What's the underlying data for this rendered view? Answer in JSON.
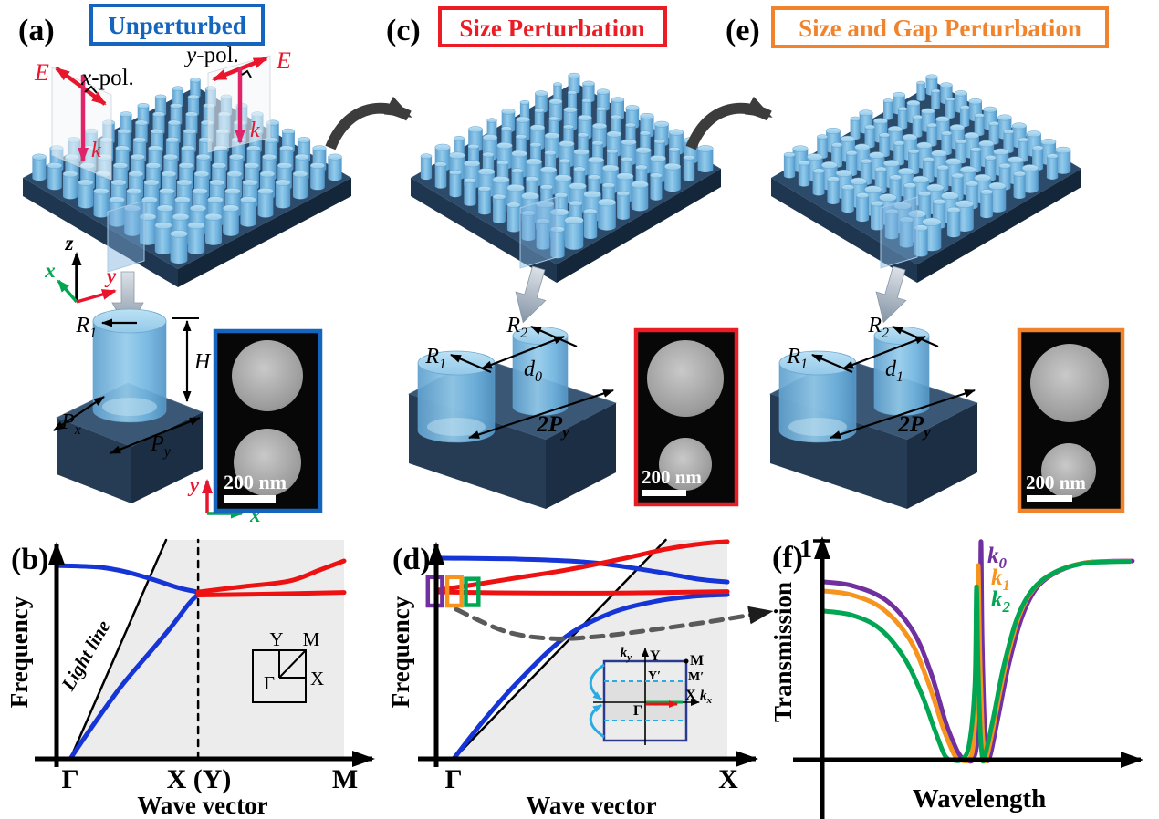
{
  "colors": {
    "blue_title": "#1565BE",
    "red_title": "#EC1C24",
    "orange_title": "#F0832C",
    "band_blue": "#1535D6",
    "band_red": "#EE1111",
    "k0_purple": "#7030A0",
    "k1_orange": "#F7941D",
    "k2_green": "#00A651",
    "axis_x_green": "#00A651",
    "axis_y_red": "#EE1111",
    "k_arrow_magenta": "#E0246A",
    "plot_shade": "#ECECEC",
    "cyan_fold": "#29ABE2"
  },
  "panel_a": {
    "tag": "(a)",
    "title": "Unperturbed",
    "pol_left_E": "E",
    "pol_left_k": "k",
    "pol_left_x": "x",
    "pol_left_rest": "-pol.",
    "pol_right_E": "E",
    "pol_right_k": "k",
    "pol_right_y": "y",
    "pol_right_rest": "-pol.",
    "axis_x": "x",
    "axis_y": "y",
    "axis_z": "z",
    "sem_axis_x": "x",
    "sem_axis_y": "y",
    "dim_R": "R",
    "dim_R_sub": "1",
    "dim_H": "H",
    "dim_P1": "P",
    "dim_P1_sub": "x",
    "dim_P2": "P",
    "dim_P2_sub": "y",
    "sem_scale": "200 nm"
  },
  "panel_c": {
    "tag": "(c)",
    "title": "Size Perturbation",
    "dim_R1": "R",
    "dim_R1_sub": "1",
    "dim_R2": "R",
    "dim_R2_sub": "2",
    "dim_d": "d",
    "dim_d_sub": "0",
    "dim_2P": "2P",
    "dim_2P_sub": "y",
    "sem_scale": "200 nm"
  },
  "panel_e": {
    "tag": "(e)",
    "title": "Size and Gap Perturbation",
    "dim_R1": "R",
    "dim_R1_sub": "1",
    "dim_R2": "R",
    "dim_R2_sub": "2",
    "dim_d": "d",
    "dim_d_sub": "1",
    "dim_2P": "2P",
    "dim_2P_sub": "y",
    "sem_scale": "200 nm"
  },
  "panel_b": {
    "tag": "(b)",
    "ylabel": "Frequency",
    "xlabel": "Wave vector",
    "light_line": "Light line",
    "tick_gamma": "Γ",
    "tick_x": "X (Y)",
    "tick_m": "M",
    "inset_Y": "Y",
    "inset_M": "M",
    "inset_G": "Γ",
    "inset_X": "X"
  },
  "panel_d": {
    "tag": "(d)",
    "ylabel": "Frequency",
    "xlabel": "Wave vector",
    "tick_gamma": "Γ",
    "tick_x": "X",
    "inset_ky": "k",
    "inset_ky_sub": "y",
    "inset_kx": "k",
    "inset_kx_sub": "x",
    "inset_Y": "Y",
    "inset_M": "M",
    "inset_Yp": "Y′",
    "inset_Mp": "M′",
    "inset_X": "X",
    "inset_G": "Γ"
  },
  "panel_f": {
    "tag": "(f)",
    "ylabel": "Transmission",
    "xlabel": "Wavelength",
    "tick_one": "1",
    "leg0": "k",
    "leg0_sub": "0",
    "leg1": "k",
    "leg1_sub": "1",
    "leg2": "k",
    "leg2_sub": "2"
  },
  "scenes": [
    {
      "panel": "a",
      "mode": "uniform",
      "rows": 10,
      "cols": 10
    },
    {
      "panel": "c",
      "mode": "size",
      "rows": 10,
      "cols": 10
    },
    {
      "panel": "e",
      "mode": "size_gap",
      "rows": 10,
      "cols": 10
    }
  ],
  "chart_data": [
    {
      "panel": "b",
      "type": "line",
      "xlabel": "Wave vector",
      "ylabel": "Frequency",
      "x_ticks": [
        "Γ",
        "X (Y)",
        "M"
      ],
      "y_ticks": [],
      "regions": [
        {
          "name": "light-cone-shading",
          "fill": "#ECECEC",
          "points": [
            [
              0,
              0
            ],
            [
              0.35,
              1
            ],
            [
              1,
              1
            ],
            [
              1,
              0
            ]
          ]
        }
      ],
      "series": [
        {
          "name": "light-line",
          "color": "#000000",
          "width": 2.5,
          "points": [
            [
              0,
              0
            ],
            [
              0.35,
              1
            ]
          ]
        },
        {
          "name": "BZ-boundary-X",
          "color": "#000000",
          "width": 2.5,
          "dash": "7,7",
          "points": [
            [
              0.467,
              0
            ],
            [
              0.467,
              1
            ]
          ]
        },
        {
          "name": "blue-band-upper",
          "color": "#1535D6",
          "width": 5,
          "points": [
            [
              -0.05,
              0.883
            ],
            [
              0.1,
              0.876
            ],
            [
              0.2,
              0.855
            ],
            [
              0.3,
              0.82
            ],
            [
              0.4,
              0.78
            ],
            [
              0.467,
              0.762
            ]
          ]
        },
        {
          "name": "blue-band-lower",
          "color": "#1535D6",
          "width": 5,
          "points": [
            [
              0,
              0
            ],
            [
              0.077,
              0.142
            ],
            [
              0.187,
              0.333
            ],
            [
              0.3,
              0.5
            ],
            [
              0.367,
              0.6
            ],
            [
              0.433,
              0.708
            ],
            [
              0.467,
              0.752
            ]
          ]
        },
        {
          "name": "red-band-upper",
          "color": "#EE1111",
          "width": 5,
          "points": [
            [
              0.467,
              0.762
            ],
            [
              0.633,
              0.787
            ],
            [
              0.8,
              0.812
            ],
            [
              0.91,
              0.862
            ],
            [
              1.0,
              0.904
            ]
          ]
        },
        {
          "name": "red-band-lower",
          "color": "#EE1111",
          "width": 5,
          "points": [
            [
              0.467,
              0.748
            ],
            [
              0.7,
              0.752
            ],
            [
              1.0,
              0.76
            ]
          ]
        }
      ]
    },
    {
      "panel": "d",
      "type": "line",
      "xlabel": "Wave vector",
      "ylabel": "Frequency",
      "x_ticks": [
        "Γ",
        "X"
      ],
      "y_ticks": [],
      "regions": [
        {
          "name": "light-cone-shading",
          "fill": "#ECECEC",
          "points": [
            [
              0,
              0
            ],
            [
              0.775,
              1
            ],
            [
              1,
              1
            ],
            [
              1,
              0
            ]
          ]
        }
      ],
      "series": [
        {
          "name": "light-line",
          "color": "#000000",
          "width": 2.5,
          "points": [
            [
              0,
              0
            ],
            [
              0.775,
              1
            ]
          ]
        },
        {
          "name": "blue-band-upper",
          "color": "#1535D6",
          "width": 5,
          "points": [
            [
              -0.057,
              0.917
            ],
            [
              0.243,
              0.912
            ],
            [
              0.51,
              0.896
            ],
            [
              0.743,
              0.854
            ],
            [
              0.893,
              0.821
            ],
            [
              1,
              0.808
            ]
          ]
        },
        {
          "name": "blue-band-lower",
          "color": "#1535D6",
          "width": 5,
          "points": [
            [
              0,
              0
            ],
            [
              0.11,
              0.175
            ],
            [
              0.243,
              0.362
            ],
            [
              0.41,
              0.558
            ],
            [
              0.577,
              0.667
            ],
            [
              0.743,
              0.721
            ],
            [
              0.877,
              0.742
            ],
            [
              1,
              0.75
            ]
          ]
        },
        {
          "name": "red-band-flat",
          "color": "#EE1111",
          "width": 5,
          "points": [
            [
              -0.057,
              0.762
            ],
            [
              0.3,
              0.757
            ],
            [
              0.65,
              0.758
            ],
            [
              1,
              0.764
            ]
          ]
        },
        {
          "name": "red-band-rising",
          "color": "#EE1111",
          "width": 5,
          "points": [
            [
              -0.057,
              0.771
            ],
            [
              0.077,
              0.796
            ],
            [
              0.243,
              0.829
            ],
            [
              0.41,
              0.862
            ],
            [
              0.61,
              0.912
            ],
            [
              0.777,
              0.958
            ],
            [
              0.91,
              0.983
            ],
            [
              1,
              0.992
            ]
          ]
        },
        {
          "name": "guide-to-transmission",
          "color": "#5A5A5A",
          "width": 5,
          "dash": "13,9",
          "arrow": "dark",
          "points": [
            [
              0.01,
              0.683
            ],
            [
              0.187,
              0.583
            ],
            [
              0.353,
              0.55
            ],
            [
              0.52,
              0.558
            ],
            [
              0.743,
              0.592
            ],
            [
              0.967,
              0.633
            ],
            [
              1.155,
              0.672
            ]
          ]
        }
      ],
      "annotations": [
        {
          "color": "#7030A0",
          "u": -0.068,
          "v": 0.765,
          "w": 0.052,
          "h": 0.13
        },
        {
          "color": "#F7941D",
          "u": 0.003,
          "v": 0.765,
          "w": 0.052,
          "h": 0.13
        },
        {
          "color": "#00A651",
          "u": 0.068,
          "v": 0.762,
          "w": 0.046,
          "h": 0.12
        }
      ]
    },
    {
      "panel": "f",
      "type": "line",
      "xlabel": "Wavelength",
      "ylabel": "Transmission",
      "x_ticks": [],
      "y_ticks": [
        "1"
      ],
      "legend": [
        "k0",
        "k1",
        "k2"
      ],
      "series": [
        {
          "name": "transmission-k0",
          "color": "#7030A0",
          "width": 5,
          "points": [
            [
              0.006,
              0.8125
            ],
            [
              0.1,
              0.795
            ],
            [
              0.21,
              0.73
            ],
            [
              0.3,
              0.59
            ],
            [
              0.36,
              0.4
            ],
            [
              0.41,
              0.17
            ],
            [
              0.445,
              0.05
            ],
            [
              0.465,
              0.006
            ],
            [
              0.475,
              0
            ],
            [
              0.5,
              0
            ],
            [
              0.515,
              0.1
            ],
            [
              0.524,
              0.45
            ],
            [
              0.527,
              0.996
            ],
            [
              0.531,
              0.55
            ],
            [
              0.54,
              0.12
            ],
            [
              0.549,
              0.01
            ],
            [
              0.553,
              0
            ],
            [
              0.563,
              0.05
            ],
            [
              0.585,
              0.2
            ],
            [
              0.62,
              0.44
            ],
            [
              0.665,
              0.66
            ],
            [
              0.715,
              0.79
            ],
            [
              0.785,
              0.862
            ],
            [
              0.875,
              0.9
            ],
            [
              0.965,
              0.907
            ],
            [
              1.03,
              0.908
            ]
          ]
        },
        {
          "name": "transmission-k1",
          "color": "#F7941D",
          "width": 5,
          "points": [
            [
              0.006,
              0.771
            ],
            [
              0.1,
              0.752
            ],
            [
              0.2,
              0.69
            ],
            [
              0.29,
              0.55
            ],
            [
              0.35,
              0.36
            ],
            [
              0.4,
              0.15
            ],
            [
              0.432,
              0.04
            ],
            [
              0.447,
              0.004
            ],
            [
              0.455,
              0
            ],
            [
              0.487,
              0
            ],
            [
              0.503,
              0.09
            ],
            [
              0.514,
              0.42
            ],
            [
              0.518,
              0.887
            ],
            [
              0.523,
              0.5
            ],
            [
              0.531,
              0.15
            ],
            [
              0.539,
              0.01
            ],
            [
              0.543,
              0
            ],
            [
              0.553,
              0.05
            ],
            [
              0.575,
              0.2
            ],
            [
              0.61,
              0.44
            ],
            [
              0.655,
              0.66
            ],
            [
              0.705,
              0.785
            ],
            [
              0.775,
              0.858
            ],
            [
              0.865,
              0.898
            ],
            [
              0.955,
              0.906
            ],
            [
              1.02,
              0.907
            ]
          ]
        },
        {
          "name": "transmission-k2",
          "color": "#00A651",
          "width": 5,
          "points": [
            [
              0.006,
              0.679
            ],
            [
              0.1,
              0.66
            ],
            [
              0.19,
              0.6
            ],
            [
              0.27,
              0.47
            ],
            [
              0.33,
              0.3
            ],
            [
              0.375,
              0.13
            ],
            [
              0.403,
              0.03
            ],
            [
              0.417,
              0.004
            ],
            [
              0.428,
              0
            ],
            [
              0.462,
              0
            ],
            [
              0.488,
              0.07
            ],
            [
              0.507,
              0.35
            ],
            [
              0.512,
              0.79
            ],
            [
              0.517,
              0.45
            ],
            [
              0.525,
              0.12
            ],
            [
              0.532,
              0.006
            ],
            [
              0.536,
              0
            ],
            [
              0.546,
              0.05
            ],
            [
              0.568,
              0.19
            ],
            [
              0.603,
              0.43
            ],
            [
              0.648,
              0.65
            ],
            [
              0.7,
              0.78
            ],
            [
              0.77,
              0.855
            ],
            [
              0.86,
              0.895
            ],
            [
              0.95,
              0.904
            ],
            [
              1.02,
              0.906
            ]
          ]
        }
      ]
    }
  ]
}
